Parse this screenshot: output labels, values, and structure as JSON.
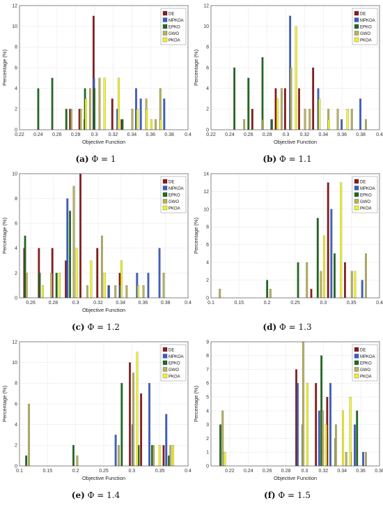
{
  "colors": {
    "DE": "#8b1a1a",
    "MPKOA": "#3a5fc8",
    "EPKO": "#1e6b1e",
    "GWO": "#b8b060",
    "PKOA": "#f2f22a"
  },
  "legend_position": "top-right",
  "chart_data": [
    {
      "type": "bar",
      "tag": "(a)",
      "label": "Φ = 1",
      "xlabel": "Objective Function",
      "ylabel": "Percentage (%)",
      "xlim": [
        0.22,
        0.4
      ],
      "ylim": [
        0,
        12
      ],
      "xticks": [
        "0.22",
        "0.24",
        "0.26",
        "0.28",
        "0.3",
        "0.32",
        "0.34",
        "0.36",
        "0.38",
        "0.4"
      ],
      "yticks": [
        "0",
        "2",
        "4",
        "6",
        "8",
        "10",
        "12"
      ],
      "grid": true,
      "series": [
        {
          "name": "DE",
          "x": [
            0.275,
            0.285,
            0.3,
            0.32,
            0.33
          ],
          "y": [
            2,
            2,
            11,
            3,
            1
          ]
        },
        {
          "name": "MPKOA",
          "x": [
            0.29,
            0.3,
            0.325,
            0.345,
            0.35,
            0.375
          ],
          "y": [
            1,
            5,
            2,
            4,
            3,
            3
          ]
        },
        {
          "name": "EPKO",
          "x": [
            0.24,
            0.255,
            0.27,
            0.29,
            0.3,
            0.33
          ],
          "y": [
            4,
            5,
            2,
            4,
            4,
            1
          ]
        },
        {
          "name": "GWO",
          "x": [
            0.275,
            0.285,
            0.295,
            0.305,
            0.325,
            0.34,
            0.355,
            0.365,
            0.37
          ],
          "y": [
            2,
            2,
            4,
            5,
            1,
            2,
            3,
            1,
            4
          ]
        },
        {
          "name": "PKOA",
          "x": [
            0.29,
            0.31,
            0.325,
            0.345,
            0.355,
            0.36,
            0.37
          ],
          "y": [
            3,
            5,
            5,
            2,
            2,
            1,
            1
          ]
        }
      ]
    },
    {
      "type": "bar",
      "tag": "(b)",
      "label": "Φ = 1.1",
      "xlabel": "Objective Function",
      "ylabel": "Percentage (%)",
      "xlim": [
        0.22,
        0.4
      ],
      "ylim": [
        0,
        12
      ],
      "xticks": [
        "0.22",
        "0.24",
        "0.26",
        "0.28",
        "0.3",
        "0.32",
        "0.34",
        "0.36",
        "0.38",
        "0.4"
      ],
      "yticks": [
        "0",
        "2",
        "4",
        "6",
        "8",
        "10",
        "12"
      ],
      "grid": true,
      "series": [
        {
          "name": "DE",
          "x": [
            0.265,
            0.29,
            0.3,
            0.315,
            0.33
          ],
          "y": [
            2,
            4,
            4,
            4,
            6
          ]
        },
        {
          "name": "MPKOA",
          "x": [
            0.285,
            0.305,
            0.335,
            0.36,
            0.38
          ],
          "y": [
            1,
            11,
            4,
            1,
            3
          ]
        },
        {
          "name": "EPKO",
          "x": [
            0.245,
            0.26,
            0.275,
            0.285,
            0.305
          ],
          "y": [
            6,
            5,
            7,
            1,
            1
          ]
        },
        {
          "name": "GWO",
          "x": [
            0.255,
            0.275,
            0.295,
            0.305,
            0.32,
            0.325,
            0.345,
            0.355,
            0.37,
            0.385
          ],
          "y": [
            1,
            1,
            4,
            6,
            2,
            2,
            2,
            2,
            2,
            1
          ]
        },
        {
          "name": "PKOA",
          "x": [
            0.29,
            0.31,
            0.335,
            0.345,
            0.365
          ],
          "y": [
            3,
            10,
            3,
            1,
            2
          ]
        }
      ]
    },
    {
      "type": "bar",
      "tag": "(c)",
      "label": "Φ = 1.2",
      "xlabel": "Objective Function",
      "ylabel": "Percentage (%)",
      "xlim": [
        0.25,
        0.4
      ],
      "ylim": [
        0,
        10
      ],
      "xticks": [
        "0.26",
        "0.28",
        "0.3",
        "0.32",
        "0.34",
        "0.36",
        "0.38",
        "0.4"
      ],
      "yticks": [
        "0",
        "2",
        "4",
        "6",
        "8",
        "10"
      ],
      "grid": true,
      "series": [
        {
          "name": "DE",
          "x": [
            0.255,
            0.268,
            0.28,
            0.292,
            0.305,
            0.32,
            0.33,
            0.34
          ],
          "y": [
            4,
            4,
            4,
            3,
            10,
            4,
            1,
            2
          ]
        },
        {
          "name": "MPKOA",
          "x": [
            0.293,
            0.33,
            0.34,
            0.355,
            0.365,
            0.375
          ],
          "y": [
            8,
            1,
            1,
            2,
            2,
            4
          ]
        },
        {
          "name": "EPKO",
          "x": [
            0.255,
            0.268,
            0.283,
            0.295
          ],
          "y": [
            5,
            2,
            2,
            7
          ]
        },
        {
          "name": "GWO",
          "x": [
            0.256,
            0.278,
            0.298,
            0.31,
            0.323,
            0.335,
            0.345,
            0.36,
            0.378
          ],
          "y": [
            2,
            2,
            9,
            1,
            5,
            1,
            1,
            1,
            2
          ]
        },
        {
          "name": "PKOA",
          "x": [
            0.27,
            0.285,
            0.3,
            0.313,
            0.325,
            0.34,
            0.355
          ],
          "y": [
            1,
            2,
            4,
            3,
            2,
            3,
            1
          ]
        }
      ]
    },
    {
      "type": "bar",
      "tag": "(d)",
      "label": "Φ = 1.3",
      "xlabel": "",
      "ylabel": "Percentage (%)",
      "xlim": [
        0.1,
        0.4
      ],
      "ylim": [
        0,
        14
      ],
      "xticks": [
        "0.1",
        "0.15",
        "0.2",
        "0.25",
        "0.3",
        "0.35",
        "0.4"
      ],
      "yticks": [
        "0",
        "2",
        "4",
        "6",
        "8",
        "10",
        "12",
        "14"
      ],
      "grid": true,
      "series": [
        {
          "name": "DE",
          "x": [
            0.28,
            0.31,
            0.34
          ],
          "y": [
            1,
            13,
            4
          ]
        },
        {
          "name": "MPKOA",
          "x": [
            0.315,
            0.37
          ],
          "y": [
            10,
            2
          ]
        },
        {
          "name": "EPKO",
          "x": [
            0.2,
            0.255,
            0.29,
            0.32
          ],
          "y": [
            2,
            4,
            9,
            5
          ]
        },
        {
          "name": "GWO",
          "x": [
            0.115,
            0.205,
            0.27,
            0.295,
            0.35,
            0.375
          ],
          "y": [
            1,
            1,
            4,
            3,
            3,
            5
          ]
        },
        {
          "name": "PKOA",
          "x": [
            0.3,
            0.33,
            0.355
          ],
          "y": [
            7,
            13,
            3
          ]
        }
      ]
    },
    {
      "type": "bar",
      "tag": "(e)",
      "label": "Φ = 1.4",
      "xlabel": "Objective Function",
      "ylabel": "Percentage (%)",
      "xlim": [
        0.1,
        0.4
      ],
      "ylim": [
        0,
        12
      ],
      "xticks": [
        "0.1",
        "0.15",
        "0.2",
        "0.25",
        "0.3",
        "0.35",
        "0.4"
      ],
      "yticks": [
        "0",
        "2",
        "4",
        "6",
        "8",
        "10",
        "12"
      ],
      "grid": true,
      "series": [
        {
          "name": "DE",
          "x": [
            0.298,
            0.318,
            0.358
          ],
          "y": [
            10,
            7,
            2
          ]
        },
        {
          "name": "MPKOA",
          "x": [
            0.272,
            0.302,
            0.332,
            0.362
          ],
          "y": [
            3,
            4,
            8,
            5
          ]
        },
        {
          "name": "EPKO",
          "x": [
            0.112,
            0.196,
            0.282,
            0.312,
            0.336,
            0.366
          ],
          "y": [
            1,
            2,
            8,
            2,
            2,
            1
          ]
        },
        {
          "name": "GWO",
          "x": [
            0.116,
            0.202,
            0.276,
            0.302,
            0.338,
            0.368
          ],
          "y": [
            6,
            1,
            2,
            9,
            2,
            2
          ]
        },
        {
          "name": "PKOA",
          "x": [
            0.308,
            0.348,
            0.372
          ],
          "y": [
            11,
            2,
            2
          ]
        }
      ]
    },
    {
      "type": "bar",
      "tag": "(f)",
      "label": "Φ = 1.5",
      "xlabel": "Objective Function",
      "ylabel": "Percentage (%)",
      "xlim": [
        0.2,
        0.38
      ],
      "ylim": [
        0,
        9
      ],
      "xticks": [
        "0.22",
        "0.24",
        "0.26",
        "0.28",
        "0.3",
        "0.32",
        "0.34",
        "0.36",
        "0.38"
      ],
      "yticks": [
        "0",
        "1",
        "2",
        "3",
        "4",
        "5",
        "6",
        "7",
        "8",
        "9"
      ],
      "grid": true,
      "series": [
        {
          "name": "DE",
          "x": [
            0.292,
            0.313,
            0.325,
            0.35
          ],
          "y": [
            7,
            6,
            5,
            1
          ]
        },
        {
          "name": "MPKOA",
          "x": [
            0.293,
            0.316,
            0.328,
            0.354,
            0.363
          ],
          "y": [
            6,
            4,
            6,
            3,
            1
          ]
        },
        {
          "name": "EPKO",
          "x": [
            0.21,
            0.298,
            0.318,
            0.333,
            0.356
          ],
          "y": [
            3,
            3,
            8,
            2,
            4
          ]
        },
        {
          "name": "GWO",
          "x": [
            0.212,
            0.298,
            0.319,
            0.333,
            0.344,
            0.365
          ],
          "y": [
            4,
            9,
            4,
            3,
            1,
            1
          ]
        },
        {
          "name": "PKOA",
          "x": [
            0.214,
            0.302,
            0.322,
            0.34,
            0.348
          ],
          "y": [
            1,
            6,
            3,
            4,
            5
          ]
        }
      ]
    }
  ]
}
